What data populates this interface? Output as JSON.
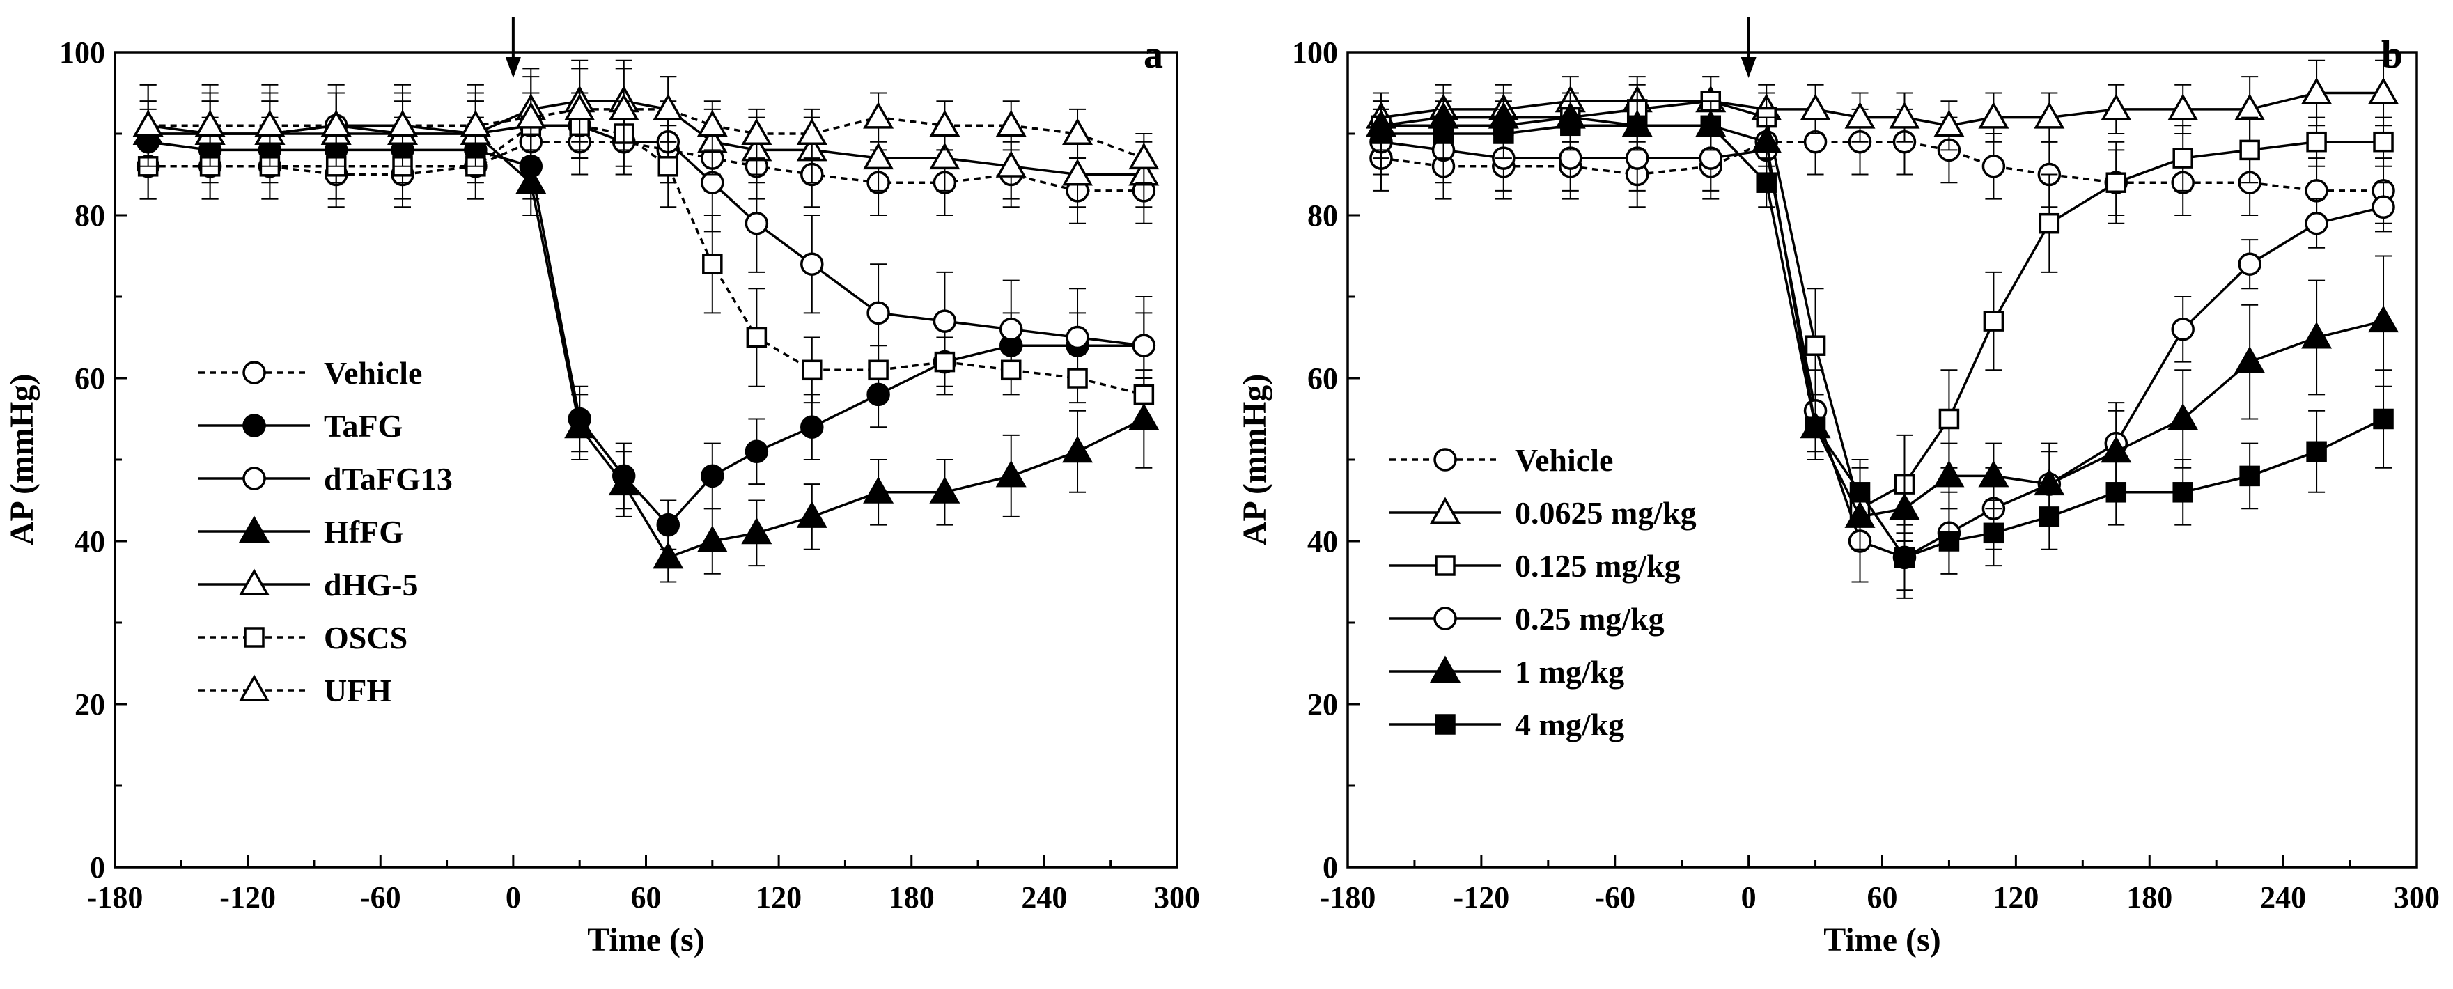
{
  "chart_data": [
    {
      "panel_label": "a",
      "type": "line",
      "xlabel": "Time (s)",
      "ylabel": "AP (mmHg)",
      "xlim": [
        -180,
        300
      ],
      "ylim": [
        0,
        100
      ],
      "xticks": [
        "-180",
        "-120",
        "-60",
        "0",
        "60",
        "120",
        "180",
        "240",
        "300"
      ],
      "yticks": [
        "0",
        "20",
        "40",
        "60",
        "80",
        "100"
      ],
      "arrow_x": 0,
      "legend_position": "left-middle",
      "x": [
        -165,
        -137,
        -110,
        -80,
        -50,
        -17,
        8,
        30,
        50,
        70,
        90,
        110,
        135,
        165,
        195,
        225,
        255,
        285
      ],
      "series": [
        {
          "name": "Vehicle",
          "marker": "circle-open",
          "dashed": true,
          "values": [
            86,
            86,
            86,
            85,
            85,
            86,
            89,
            89,
            89,
            88,
            87,
            86,
            85,
            84,
            84,
            85,
            83,
            83
          ],
          "errors": [
            4,
            4,
            4,
            4,
            4,
            4,
            4,
            4,
            4,
            4,
            4,
            4,
            4,
            4,
            4,
            4,
            4,
            4
          ]
        },
        {
          "name": "TaFG",
          "marker": "circle-filled",
          "dashed": false,
          "values": [
            89,
            88,
            88,
            88,
            88,
            88,
            86,
            55,
            48,
            42,
            48,
            51,
            54,
            58,
            62,
            64,
            64,
            64
          ],
          "errors": [
            4,
            4,
            4,
            4,
            4,
            4,
            4,
            4,
            4,
            3,
            4,
            4,
            4,
            4,
            4,
            4,
            4,
            4
          ]
        },
        {
          "name": "dTaFG13",
          "marker": "circle-open",
          "dashed": false,
          "values": [
            90,
            90,
            90,
            91,
            90,
            90,
            91,
            91,
            89,
            89,
            84,
            79,
            74,
            68,
            67,
            66,
            65,
            64
          ],
          "errors": [
            4,
            4,
            4,
            4,
            4,
            4,
            4,
            4,
            4,
            5,
            6,
            6,
            6,
            6,
            6,
            6,
            6,
            6
          ]
        },
        {
          "name": "HfFG",
          "marker": "triangle-filled",
          "dashed": false,
          "values": [
            90,
            90,
            90,
            91,
            91,
            90,
            84,
            54,
            47,
            38,
            40,
            41,
            43,
            46,
            46,
            48,
            51,
            55
          ],
          "errors": [
            4,
            4,
            4,
            4,
            4,
            4,
            4,
            4,
            4,
            3,
            4,
            4,
            4,
            4,
            4,
            5,
            5,
            6
          ]
        },
        {
          "name": "dHG-5",
          "marker": "triangle-open",
          "dashed": false,
          "values": [
            91,
            90,
            90,
            90,
            90,
            90,
            93,
            94,
            94,
            93,
            89,
            88,
            88,
            87,
            87,
            86,
            85,
            85
          ],
          "errors": [
            5,
            5,
            5,
            5,
            5,
            5,
            5,
            5,
            5,
            4,
            4,
            4,
            4,
            4,
            4,
            4,
            4,
            4
          ]
        },
        {
          "name": "OSCS",
          "marker": "square-open",
          "dashed": true,
          "values": [
            86,
            86,
            86,
            86,
            86,
            86,
            91,
            91,
            90,
            86,
            74,
            65,
            61,
            61,
            62,
            61,
            60,
            58
          ],
          "errors": [
            4,
            4,
            4,
            4,
            4,
            4,
            4,
            4,
            4,
            5,
            6,
            6,
            4,
            3,
            3,
            3,
            3,
            3
          ]
        },
        {
          "name": "UFH",
          "marker": "triangle-open",
          "dashed": true,
          "values": [
            91,
            91,
            91,
            91,
            91,
            91,
            92,
            93,
            93,
            93,
            91,
            90,
            90,
            92,
            91,
            91,
            90,
            87
          ],
          "errors": [
            5,
            5,
            5,
            5,
            5,
            5,
            5,
            5,
            5,
            4,
            3,
            3,
            3,
            3,
            3,
            3,
            3,
            3
          ]
        }
      ]
    },
    {
      "panel_label": "b",
      "type": "line",
      "xlabel": "Time (s)",
      "ylabel": "AP (mmHg)",
      "xlim": [
        -180,
        300
      ],
      "ylim": [
        0,
        100
      ],
      "xticks": [
        "-180",
        "-120",
        "-60",
        "0",
        "60",
        "120",
        "180",
        "240",
        "300"
      ],
      "yticks": [
        "0",
        "20",
        "40",
        "60",
        "80",
        "100"
      ],
      "arrow_x": 0,
      "legend_position": "bottom-left",
      "x": [
        -165,
        -137,
        -110,
        -80,
        -50,
        -17,
        8,
        30,
        50,
        70,
        90,
        110,
        135,
        165,
        195,
        225,
        255,
        285
      ],
      "series": [
        {
          "name": "Vehicle",
          "marker": "circle-open",
          "dashed": true,
          "values": [
            87,
            86,
            86,
            86,
            85,
            86,
            89,
            89,
            89,
            89,
            88,
            86,
            85,
            84,
            84,
            84,
            83,
            83
          ],
          "errors": [
            4,
            4,
            4,
            4,
            4,
            4,
            4,
            4,
            4,
            4,
            4,
            4,
            4,
            4,
            4,
            4,
            4,
            4
          ]
        },
        {
          "name": "0.0625 mg/kg",
          "marker": "triangle-open",
          "dashed": false,
          "values": [
            92,
            93,
            93,
            94,
            94,
            94,
            93,
            93,
            92,
            92,
            91,
            92,
            92,
            93,
            93,
            93,
            95,
            95
          ],
          "errors": [
            3,
            3,
            3,
            3,
            3,
            3,
            3,
            3,
            3,
            3,
            3,
            3,
            3,
            3,
            3,
            4,
            4,
            4
          ]
        },
        {
          "name": "0.125 mg/kg",
          "marker": "square-open",
          "dashed": false,
          "values": [
            91,
            91,
            91,
            92,
            93,
            94,
            92,
            64,
            44,
            47,
            55,
            67,
            79,
            84,
            87,
            88,
            89,
            89
          ],
          "errors": [
            3,
            3,
            3,
            3,
            3,
            3,
            3,
            7,
            5,
            6,
            6,
            6,
            6,
            5,
            4,
            4,
            3,
            3
          ]
        },
        {
          "name": "0.25 mg/kg",
          "marker": "circle-open",
          "dashed": false,
          "values": [
            89,
            88,
            87,
            87,
            87,
            87,
            88,
            56,
            40,
            38,
            41,
            44,
            47,
            52,
            66,
            74,
            79,
            81
          ],
          "errors": [
            4,
            4,
            4,
            4,
            4,
            4,
            4,
            5,
            5,
            5,
            5,
            5,
            5,
            5,
            4,
            3,
            3,
            3
          ]
        },
        {
          "name": "1 mg/kg",
          "marker": "triangle-filled",
          "dashed": false,
          "values": [
            91,
            92,
            92,
            92,
            91,
            91,
            89,
            54,
            43,
            44,
            48,
            48,
            47,
            51,
            55,
            62,
            65,
            67
          ],
          "errors": [
            3,
            3,
            3,
            3,
            3,
            3,
            3,
            4,
            4,
            4,
            4,
            4,
            4,
            5,
            6,
            7,
            7,
            8
          ]
        },
        {
          "name": "4 mg/kg",
          "marker": "square-filled",
          "dashed": false,
          "values": [
            90,
            90,
            90,
            91,
            91,
            91,
            84,
            54,
            46,
            38,
            40,
            41,
            43,
            46,
            46,
            48,
            51,
            55
          ],
          "errors": [
            3,
            3,
            3,
            3,
            3,
            3,
            3,
            4,
            4,
            4,
            4,
            4,
            4,
            4,
            4,
            4,
            5,
            6
          ]
        }
      ]
    }
  ]
}
